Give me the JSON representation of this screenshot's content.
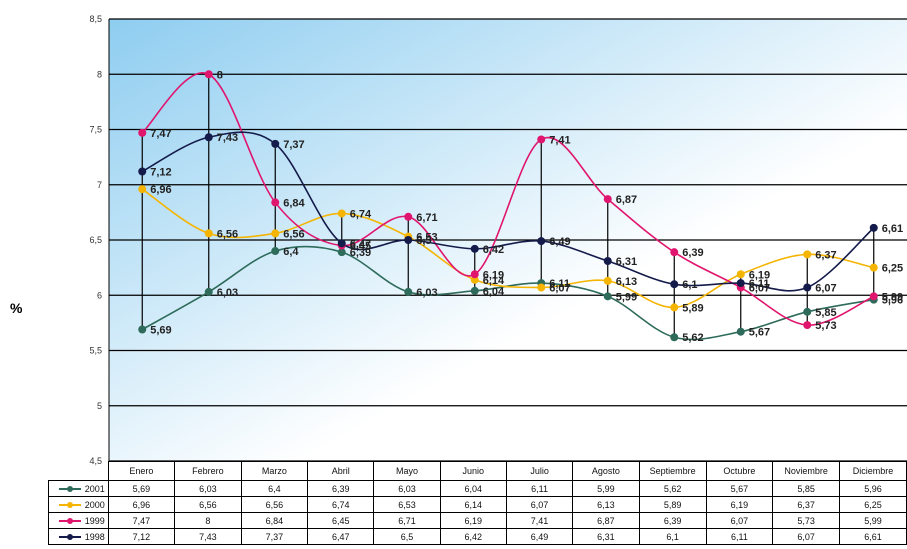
{
  "y_unit_label": "%",
  "colors": {
    "2001": "#2e6b5a",
    "2000": "#f5b400",
    "1999": "#e0156e",
    "1998": "#141a4a",
    "plot_gradient_start": "#8ecdf0",
    "plot_gradient_end": "#ffffff"
  },
  "chart_data": {
    "type": "line",
    "categories": [
      "Enero",
      "Febrero",
      "Marzo",
      "Abril",
      "Mayo",
      "Junio",
      "Julio",
      "Agosto",
      "Septiembre",
      "Octubre",
      "Noviembre",
      "Diciembre"
    ],
    "ylim": [
      4.5,
      8.5
    ],
    "yticks": [
      "4,5",
      "5",
      "5,5",
      "6",
      "6,5",
      "7",
      "7,5",
      "8",
      "8,5"
    ],
    "ytick_values": [
      4.5,
      5,
      5.5,
      6,
      6.5,
      7,
      7.5,
      8,
      8.5
    ],
    "grid": true,
    "legend": "table-bottom",
    "series": [
      {
        "name": "2001",
        "values": [
          5.69,
          6.03,
          6.4,
          6.39,
          6.03,
          6.04,
          6.11,
          5.99,
          5.62,
          5.67,
          5.85,
          5.96
        ],
        "labels": [
          "5,69",
          "6,03",
          "6,4",
          "6,39",
          "6,03",
          "6,04",
          "6,11",
          "5,99",
          "5,62",
          "5,67",
          "5,85",
          "5,96"
        ]
      },
      {
        "name": "2000",
        "values": [
          6.96,
          6.56,
          6.56,
          6.74,
          6.53,
          6.14,
          6.07,
          6.13,
          5.89,
          6.19,
          6.37,
          6.25
        ],
        "labels": [
          "6,96",
          "6,56",
          "6,56",
          "6,74",
          "6,53",
          "6,14",
          "6,07",
          "6,13",
          "5,89",
          "6,19",
          "6,37",
          "6,25"
        ]
      },
      {
        "name": "1999",
        "values": [
          7.47,
          8,
          6.84,
          6.45,
          6.71,
          6.19,
          7.41,
          6.87,
          6.39,
          6.07,
          5.73,
          5.99
        ],
        "labels": [
          "7,47",
          "8",
          "6,84",
          "6,45",
          "6,71",
          "6,19",
          "7,41",
          "6,87",
          "6,39",
          "6,07",
          "5,73",
          "5,99"
        ]
      },
      {
        "name": "1998",
        "values": [
          7.12,
          7.43,
          7.37,
          6.47,
          6.5,
          6.42,
          6.49,
          6.31,
          6.1,
          6.11,
          6.07,
          6.61
        ],
        "labels": [
          "7,12",
          "7,43",
          "7,37",
          "6,47",
          "6,5",
          "6,42",
          "6,49",
          "6,31",
          "6,1",
          "6,11",
          "6,07",
          "6,61"
        ]
      }
    ]
  }
}
